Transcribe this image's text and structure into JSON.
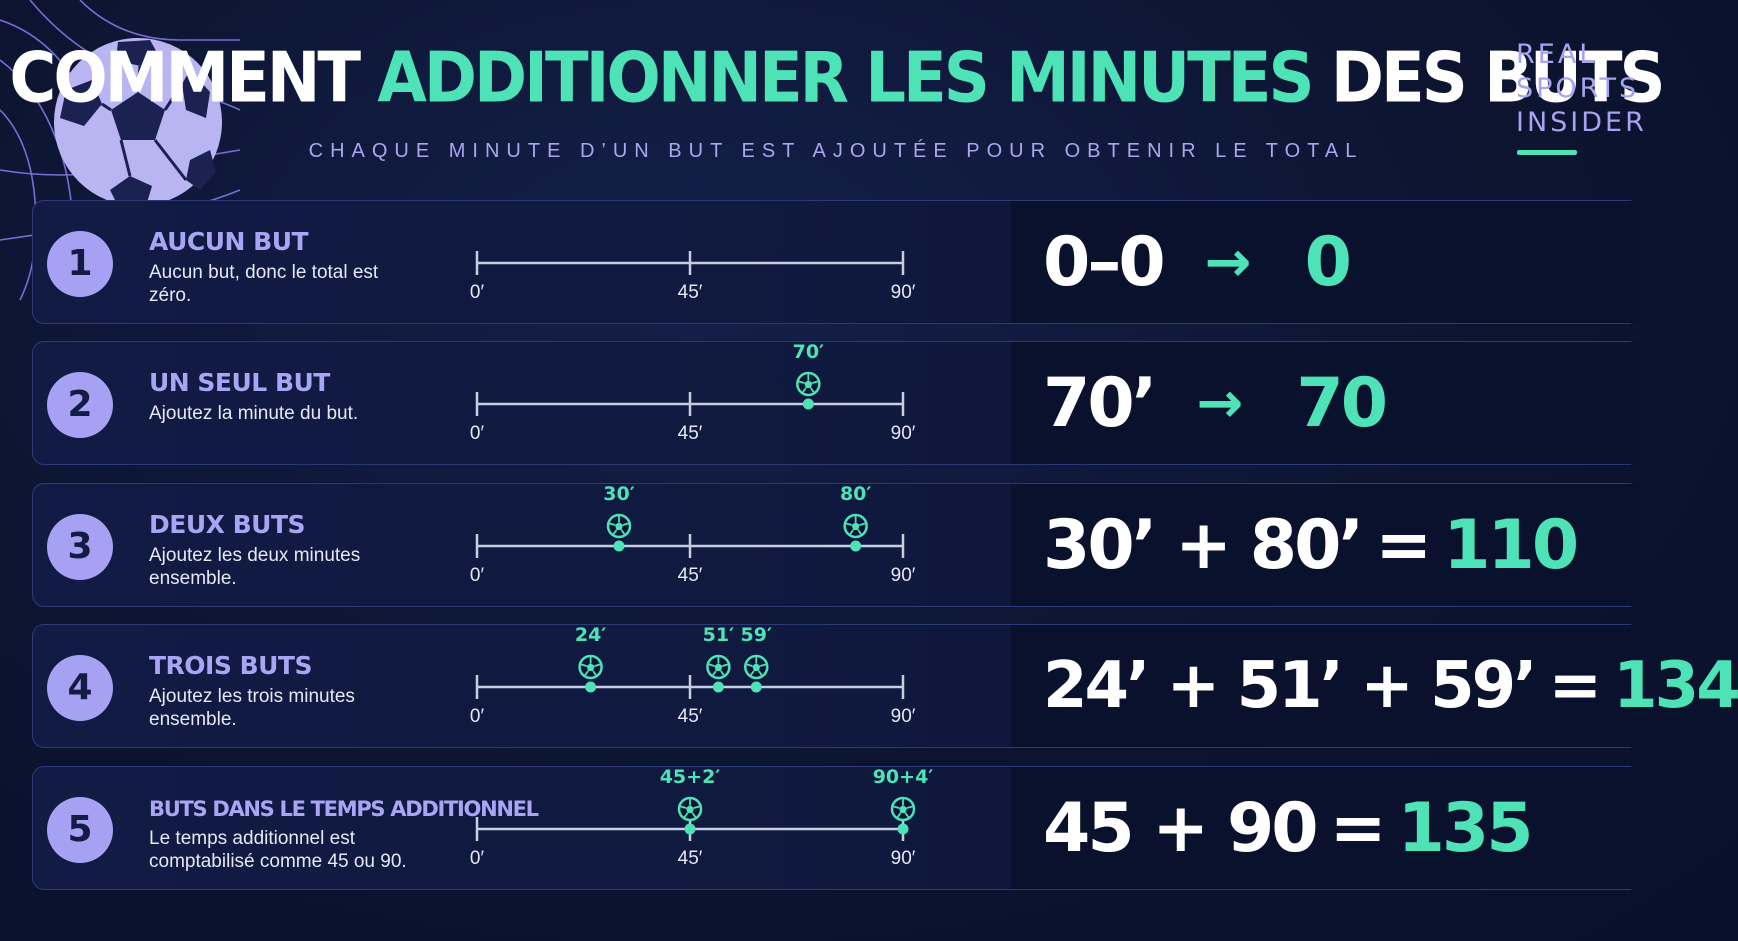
{
  "header": {
    "title_part1": "COMMENT ",
    "title_highlight": "ADDITIONNER LES MINUTES",
    "title_part3": " DES BUTS",
    "subtitle": "CHAQUE MINUTE D’UN BUT EST AJOUTÉE POUR OBTENIR LE TOTAL"
  },
  "brand": {
    "line1": "REAL",
    "line2": "SPORTS",
    "line3": "INSIDER"
  },
  "colors": {
    "accent": "#4ee3b7",
    "purple": "#a6a1f2",
    "background": "#0c1430"
  },
  "icons": {
    "goal": "soccer-ball-icon",
    "decoration": "soccer-ball-net-illustration"
  },
  "timeline": {
    "ticks": [
      "0′",
      "45′",
      "90′"
    ],
    "max_minute": 90
  },
  "rows": [
    {
      "number": "1",
      "title": "AUCUN BUT",
      "description": "Aucun but, donc le total est zéro.",
      "goals": [],
      "equation": {
        "expression": "0–0",
        "operator": "arrow",
        "result": "0"
      }
    },
    {
      "number": "2",
      "title": "UN SEUL BUT",
      "description": "Ajoutez la minute du but.",
      "goals": [
        {
          "label": "70′",
          "minute": 70
        }
      ],
      "equation": {
        "expression": "70’",
        "operator": "arrow",
        "result": "70"
      }
    },
    {
      "number": "3",
      "title": "DEUX BUTS",
      "description": "Ajoutez les deux minutes ensemble.",
      "goals": [
        {
          "label": "30′",
          "minute": 30
        },
        {
          "label": "80′",
          "minute": 80
        }
      ],
      "equation": {
        "expression": "30’ + 80’",
        "operator": "=",
        "result": "110"
      }
    },
    {
      "number": "4",
      "title": "TROIS BUTS",
      "description": "Ajoutez les trois minutes ensemble.",
      "goals": [
        {
          "label": "24′",
          "minute": 24
        },
        {
          "label": "51′",
          "minute": 51
        },
        {
          "label": "59′",
          "minute": 59
        }
      ],
      "equation": {
        "expression": "24’ + 51’ + 59’",
        "operator": "=",
        "result": "134"
      }
    },
    {
      "number": "5",
      "title": "BUTS DANS LE TEMPS ADDITIONNEL",
      "description": "Le temps additionnel est comptabilisé comme 45 ou 90.",
      "goals": [
        {
          "label": "45+2′",
          "minute": 45
        },
        {
          "label": "90+4′",
          "minute": 90
        }
      ],
      "equation": {
        "expression": "45 + 90",
        "operator": "=",
        "result": "135"
      }
    }
  ]
}
